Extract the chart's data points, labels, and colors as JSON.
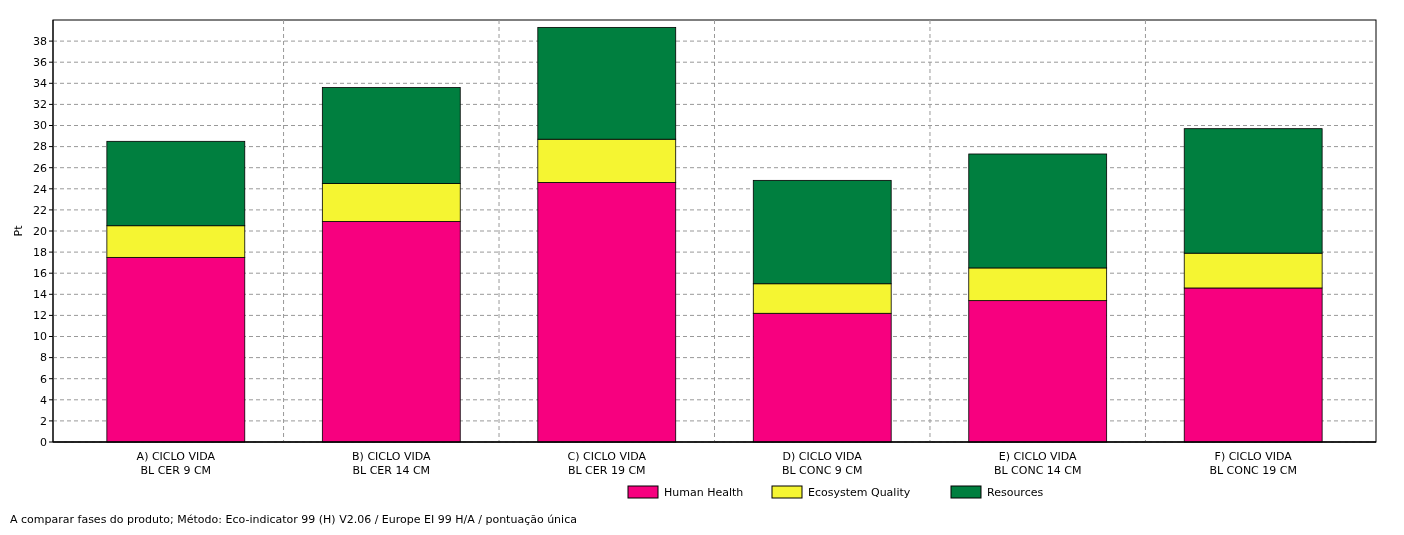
{
  "chart_data": {
    "type": "bar",
    "stacked": true,
    "ylabel": "Pt",
    "categories": [
      "A) CICLO VIDA\nBL CER 9 CM",
      "B) CICLO VIDA\nBL CER 14 CM",
      "C) CICLO VIDA\nBL CER 19 CM",
      "D) CICLO VIDA\nBL CONC 9 CM",
      "E) CICLO VIDA\nBL CONC 14 CM",
      "F) CICLO VIDA\nBL CONC 19 CM"
    ],
    "series": [
      {
        "name": "Human Health",
        "color": "#f7007f",
        "values": [
          17.5,
          20.9,
          24.6,
          12.2,
          13.4,
          14.6
        ]
      },
      {
        "name": "Ecosystem Quality",
        "color": "#f5f532",
        "values": [
          3.0,
          3.6,
          4.1,
          2.8,
          3.1,
          3.3
        ]
      },
      {
        "name": "Resources",
        "color": "#007f3f",
        "values": [
          8.0,
          9.1,
          10.6,
          9.8,
          10.8,
          11.8
        ]
      }
    ],
    "ylim": [
      0,
      40
    ],
    "yticks": [
      0,
      2,
      4,
      6,
      8,
      10,
      12,
      14,
      16,
      18,
      20,
      22,
      24,
      26,
      28,
      30,
      32,
      34,
      36,
      38
    ],
    "grid": true,
    "legend": "bottom",
    "annotations": [
      "A comparar fases do produto;  Método: Eco-indicator 99 (H) V2.06 /  Europe EI 99 H/A / pontuação única"
    ]
  }
}
